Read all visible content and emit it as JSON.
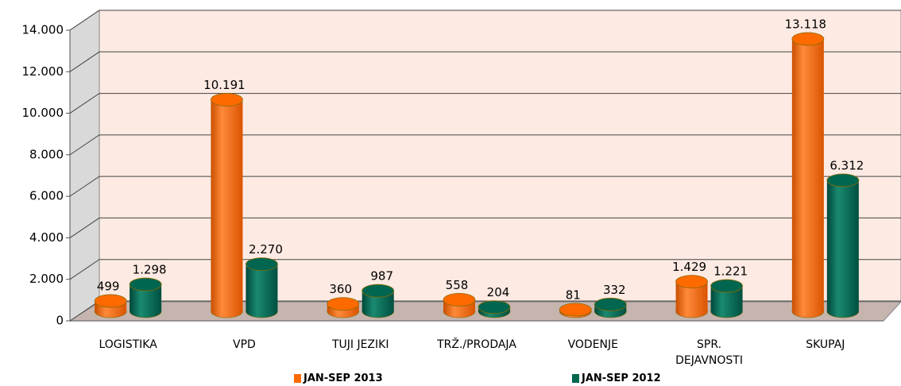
{
  "chart_data": {
    "type": "bar",
    "categories": [
      "LOGISTIKA",
      "VPD",
      "TUJI JEZIKI",
      "TRŽ./PRODAJA",
      "VODENJE",
      "SPR. DEJAVNOSTI",
      "SKUPAJ"
    ],
    "series": [
      {
        "name": "JAN-SEP 2013",
        "color": "#ff6a00",
        "values": [
          499,
          10191,
          360,
          558,
          81,
          1429,
          13118
        ],
        "value_labels": [
          "499",
          "10.191",
          "360",
          "558",
          "81",
          "1.429",
          "13.118"
        ]
      },
      {
        "name": "JAN-SEP 2012",
        "color": "#00664f",
        "values": [
          1298,
          2270,
          987,
          204,
          332,
          1221,
          6312
        ],
        "value_labels": [
          "1.298",
          "2.270",
          "987",
          "204",
          "332",
          "1.221",
          "6.312"
        ]
      }
    ],
    "ylim": [
      0,
      14000
    ],
    "yticks": [
      0,
      {
        "value": 2000,
        "label": "2.000"
      },
      {
        "value": 4000,
        "label": "4.000"
      },
      {
        "value": 6000,
        "label": "6.000"
      },
      {
        "value": 8000,
        "label": "8.000"
      },
      {
        "value": 10000,
        "label": "10.000"
      },
      {
        "value": 12000,
        "label": "12.000"
      },
      {
        "value": 14000,
        "label": "14.000"
      }
    ],
    "grid": true
  }
}
